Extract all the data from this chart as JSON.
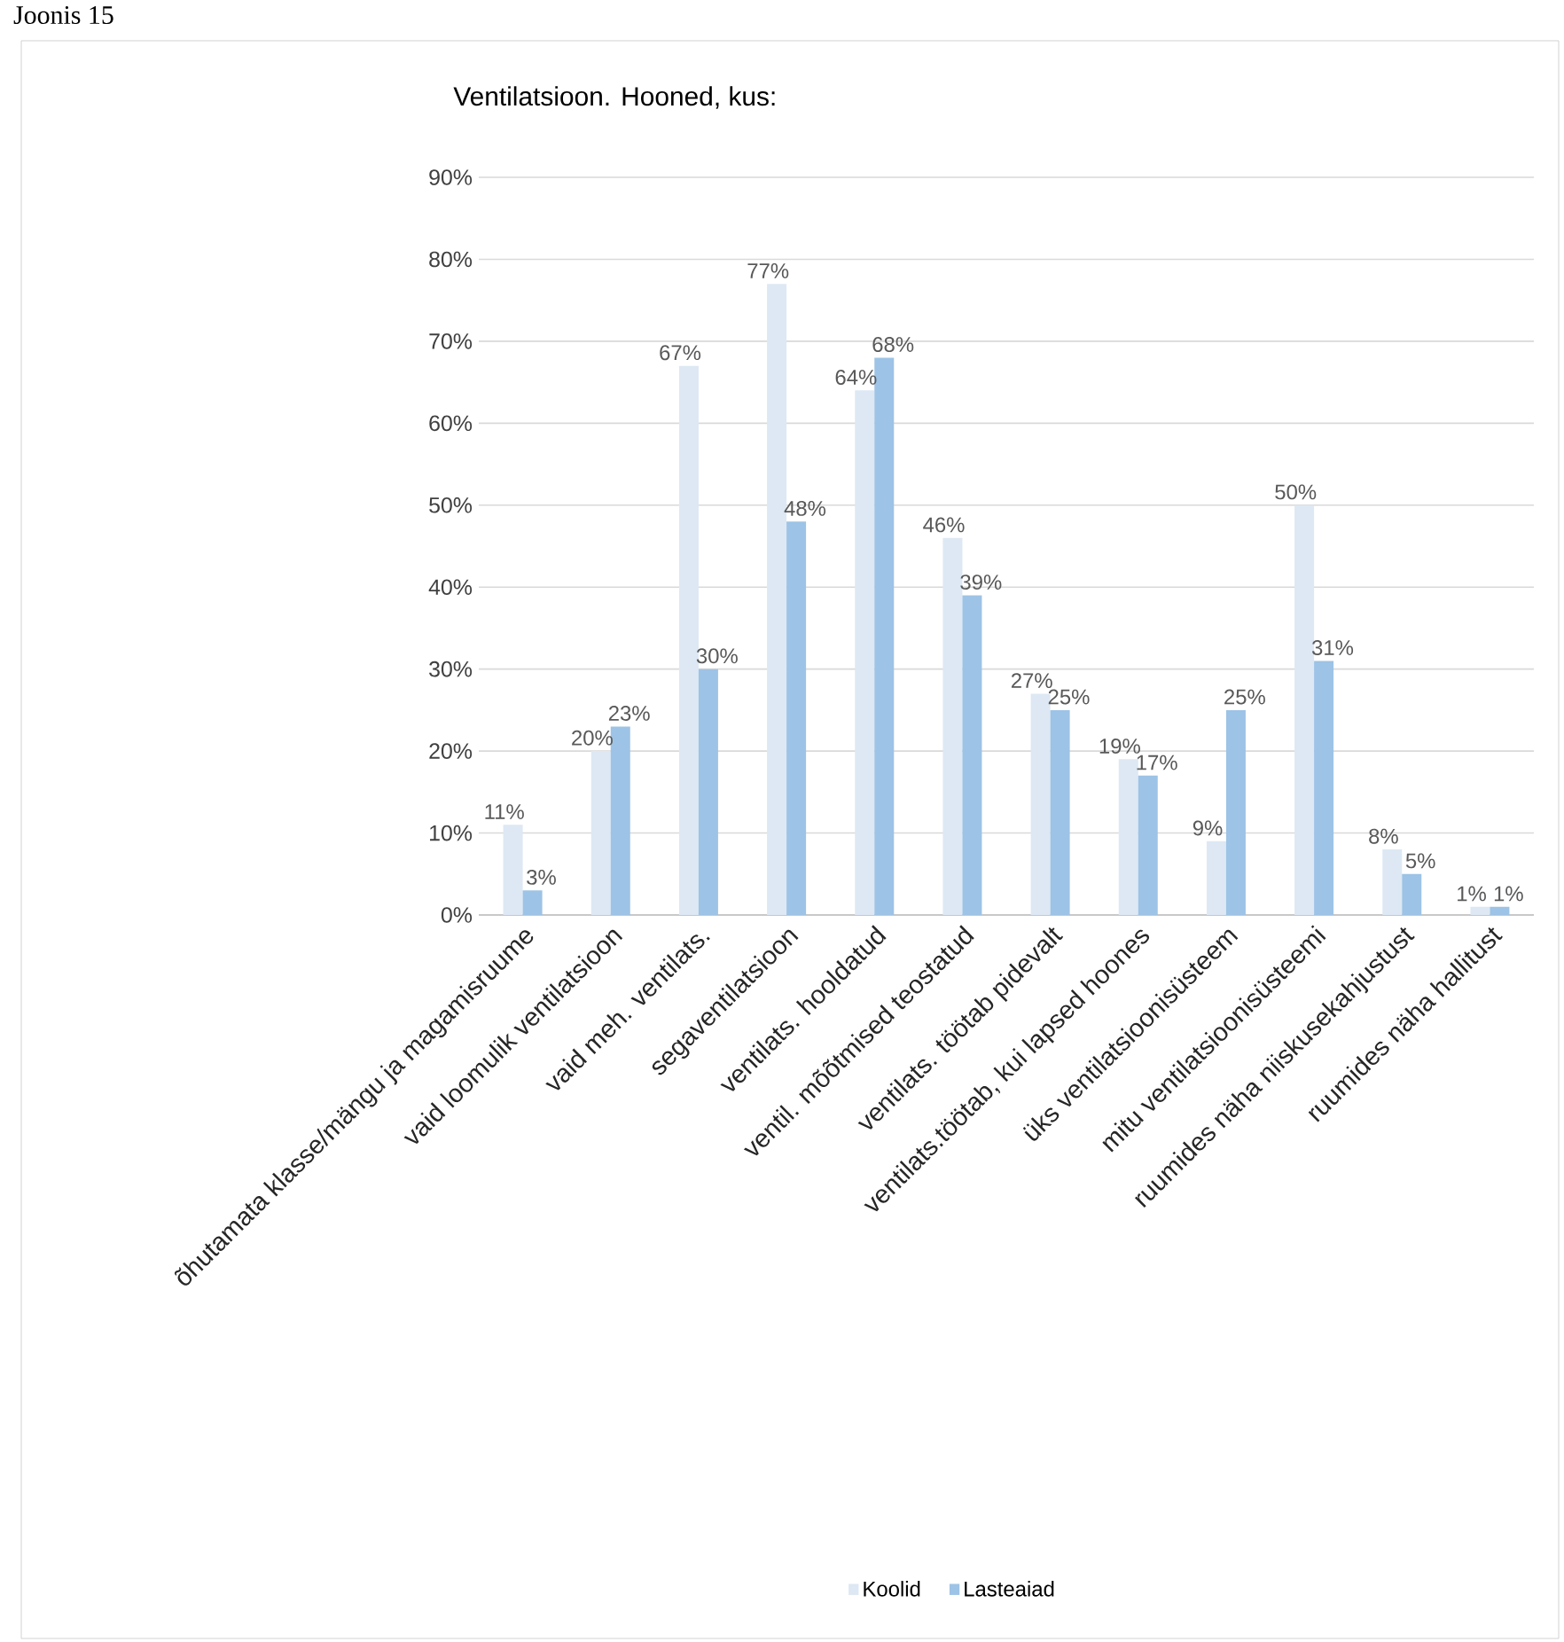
{
  "chart_data": {
    "type": "bar",
    "title": "Ventilatsioon. Hooned, kus:",
    "annotations": [
      "Joonis 15"
    ],
    "categories": [
      "õhutamata klasse/mängu ja magamisruume",
      "vaid loomulik ventilatsioon",
      "vaid meh. ventilats.",
      "segaventilatsioon",
      "ventilats. hooldatud",
      "ventil. mõõtmised teostatud",
      "ventilats. töötab pidevalt",
      "ventilats.töötab, kui lapsed hoones",
      "üks ventilatsioonisüsteem",
      "mitu ventilatsioonisüsteemi",
      "ruumides näha niiskusekahjustust",
      "ruumides näha hallitust"
    ],
    "series": [
      {
        "name": "Koolid",
        "color": "#dde8f4",
        "values": [
          11,
          20,
          67,
          77,
          64,
          46,
          27,
          19,
          9,
          50,
          8,
          1
        ],
        "value_labels": [
          "11%",
          "20%",
          "67%",
          "77%",
          "64%",
          "46%",
          "27%",
          "19%",
          "9%",
          "50%",
          "8%",
          "1%"
        ]
      },
      {
        "name": "Lasteaiad",
        "color": "#9dc3e6",
        "values": [
          3,
          23,
          30,
          48,
          68,
          39,
          25,
          17,
          25,
          31,
          5,
          1
        ],
        "value_labels": [
          "3%",
          "23%",
          "30%",
          "48%",
          "68%",
          "39%",
          "25%",
          "17%",
          "25%",
          "31%",
          "5%",
          "1%"
        ]
      }
    ],
    "ylim": [
      0,
      90
    ],
    "yticks": [
      {
        "value": 0,
        "label": "0%"
      },
      {
        "value": 10,
        "label": "10%"
      },
      {
        "value": 20,
        "label": "20%"
      },
      {
        "value": 30,
        "label": "30%"
      },
      {
        "value": 40,
        "label": "40%"
      },
      {
        "value": 50,
        "label": "50%"
      },
      {
        "value": 60,
        "label": "60%"
      },
      {
        "value": 70,
        "label": "70%"
      },
      {
        "value": 80,
        "label": "80%"
      },
      {
        "value": 90,
        "label": "90%"
      }
    ],
    "grid": "y",
    "legend": "bottom"
  }
}
